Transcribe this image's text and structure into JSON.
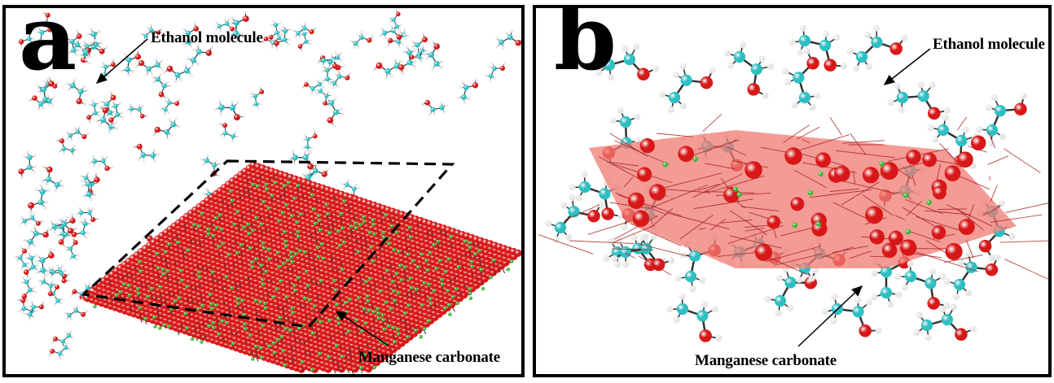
{
  "panels": [
    {
      "letter": "a",
      "labels": {
        "ethanol": "Ethanol molecule",
        "carbonate": "Manganese carbonate"
      }
    },
    {
      "letter": "b",
      "labels": {
        "ethanol": "Ethanol molecule",
        "carbonate": "Manganese carbonate"
      }
    }
  ],
  "colors": {
    "oxygen": "#d81818",
    "carbon": "#2ebfc2",
    "hydrogen": "#e6e6e6",
    "manganese": "#3ab83a",
    "mesh": "#a01818",
    "mesh_fill": "#f07a72",
    "bond": "#333333"
  }
}
